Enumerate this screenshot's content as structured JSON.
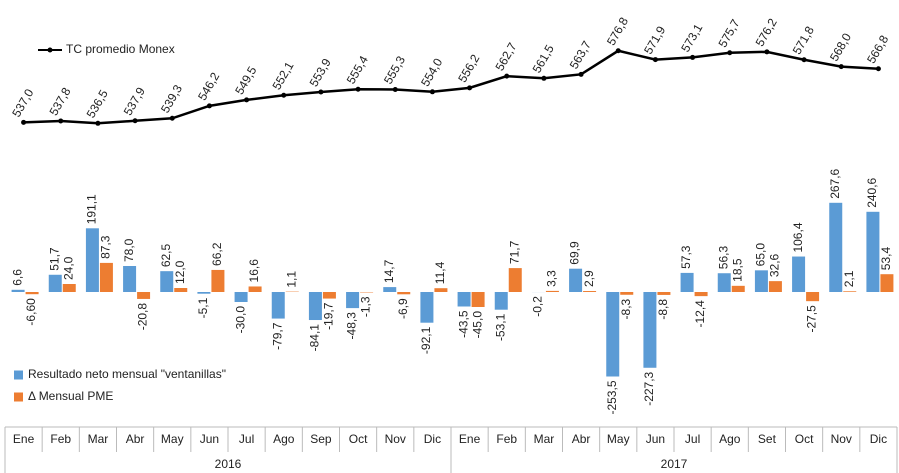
{
  "chart_data": {
    "type": "bar",
    "categories": [
      "Ene",
      "Feb",
      "Mar",
      "Abr",
      "May",
      "Jun",
      "Jul",
      "Ago",
      "Sep",
      "Oct",
      "Nov",
      "Dic",
      "Ene",
      "Feb",
      "Mar",
      "Abr",
      "May",
      "Jun",
      "Jul",
      "Ago",
      "Set",
      "Oct",
      "Nov",
      "Dic"
    ],
    "years": [
      "2016",
      "2017"
    ],
    "ylim": [
      -300,
      300
    ],
    "y2lim": [
      530,
      580
    ],
    "series": [
      {
        "name": "Resultado neto mensual \"ventanillas\"",
        "color": "#5b9bd5",
        "values": [
          6.6,
          51.7,
          191.1,
          78.0,
          62.5,
          -5.1,
          -30.0,
          -79.7,
          -84.1,
          -48.3,
          14.7,
          -92.1,
          -43.5,
          -53.1,
          -0.2,
          69.9,
          -253.5,
          -227.3,
          57.3,
          56.3,
          65.0,
          106.4,
          267.6,
          240.6
        ],
        "value_labels": [
          "6,6",
          "51,7",
          "191,1",
          "78,0",
          "62,5",
          "-5,1",
          "-30,0",
          "-79,7",
          "-84,1",
          "-48,3",
          "14,7",
          "-92,1",
          "-43,5",
          "-53,1",
          "-0,2",
          "69,9",
          "-253,5",
          "-227,3",
          "57,3",
          "56,3",
          "65,0",
          "106,4",
          "267,6",
          "240,6"
        ]
      },
      {
        "name": "Δ Mensual PME",
        "color": "#ed7d31",
        "values": [
          -6.6,
          24.0,
          87.3,
          -20.8,
          12.0,
          66.2,
          16.6,
          1.1,
          -19.7,
          -1.3,
          -6.9,
          11.4,
          -45.0,
          71.7,
          3.3,
          2.9,
          -8.3,
          -8.8,
          -12.4,
          18.5,
          32.6,
          -27.5,
          2.1,
          53.4
        ],
        "value_labels": [
          "-6,60",
          "24,0",
          "87,3",
          "-20,8",
          "12,0",
          "66,2",
          "16,6",
          "1,1",
          "-19,7",
          "-1,3",
          "-6,9",
          "11,4",
          "-45,0",
          "71,7",
          "3,3",
          "2,9",
          "-8,3",
          "-8,8",
          "-12,4",
          "18,5",
          "32,6",
          "-27,5",
          "2,1",
          "53,4"
        ]
      },
      {
        "name": "TC promedio Monex",
        "type": "line",
        "axis": "y2",
        "color": "#000000",
        "values": [
          537.0,
          537.8,
          536.5,
          537.9,
          539.3,
          546.2,
          549.5,
          552.1,
          553.9,
          555.4,
          555.3,
          554.0,
          556.2,
          562.7,
          561.5,
          563.7,
          576.8,
          571.9,
          573.1,
          575.7,
          576.2,
          571.8,
          568.0,
          566.8
        ],
        "value_labels": [
          "537,0",
          "537,8",
          "536,5",
          "537,9",
          "539,3",
          "546,2",
          "549,5",
          "552,1",
          "553,9",
          "555,4",
          "555,3",
          "554,0",
          "556,2",
          "562,7",
          "561,5",
          "563,7",
          "576,8",
          "571,9",
          "573,1",
          "575,7",
          "576,2",
          "571,8",
          "568,0",
          "566,8"
        ]
      }
    ]
  }
}
